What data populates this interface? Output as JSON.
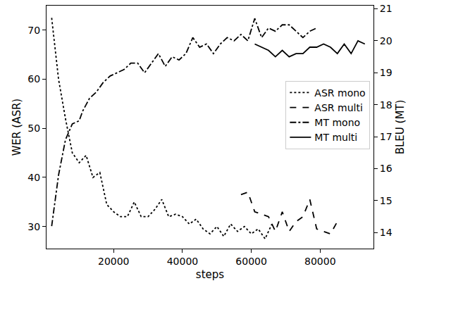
{
  "chart_data": {
    "type": "line",
    "x_label": "steps",
    "y_label": "WER (ASR)",
    "y2_label": "BLEU (MT)",
    "xlim": [
      500,
      95500
    ],
    "xticks": [
      20000,
      40000,
      60000,
      80000
    ],
    "ylim": [
      25.5,
      75
    ],
    "yticks": [
      30,
      40,
      50,
      60,
      70
    ],
    "y2lim": [
      13.5,
      21.1
    ],
    "y2ticks": [
      14,
      15,
      16,
      17,
      18,
      19,
      20,
      21
    ],
    "grid": false,
    "legend": "center right",
    "series": [
      {
        "name": "ASR mono",
        "color": "#000000",
        "line_style": "dotted",
        "axis": "y",
        "x": [
          2000,
          4000,
          6000,
          8000,
          10000,
          12000,
          14000,
          16000,
          18000,
          20000,
          22000,
          24000,
          26000,
          28000,
          30000,
          32000,
          34000,
          36000,
          38000,
          40000,
          42000,
          44000,
          46000,
          48000,
          50000,
          52000,
          54000,
          56000,
          58000,
          60000,
          62000,
          64000,
          66000
        ],
        "values": [
          72.5,
          60,
          52,
          45,
          43,
          44.5,
          40,
          41,
          34.5,
          33,
          32,
          32,
          35,
          32,
          32,
          33.5,
          35.5,
          32,
          32.5,
          32,
          30.5,
          31.5,
          29.5,
          28.5,
          30,
          28,
          30.5,
          29,
          30,
          28.5,
          29.5,
          27.5,
          30.5
        ]
      },
      {
        "name": "ASR multi",
        "color": "#000000",
        "line_style": "dashed",
        "axis": "y",
        "x": [
          57000,
          59000,
          61000,
          63000,
          65000,
          67000,
          69000,
          71000,
          73000,
          75000,
          77000,
          79000,
          81000,
          83000,
          85000
        ],
        "values": [
          36.5,
          37,
          33,
          32.5,
          32,
          29,
          33,
          29,
          31,
          32,
          35.5,
          29.5,
          29,
          28.5,
          31
        ]
      },
      {
        "name": "MT mono",
        "color": "#000000",
        "line_style": "dashdot",
        "axis": "y2",
        "x": [
          2000,
          4000,
          6000,
          8000,
          10000,
          11000,
          13000,
          15000,
          17000,
          19000,
          21000,
          23000,
          25000,
          27000,
          29000,
          31000,
          33000,
          35000,
          37000,
          39000,
          41000,
          43000,
          45000,
          47000,
          49000,
          51000,
          53000,
          55000,
          57000,
          59000,
          61000,
          63000,
          65000,
          67000,
          69000,
          71000,
          73000,
          75000,
          77000,
          79000
        ],
        "values": [
          14.2,
          15.8,
          16.9,
          17.4,
          17.5,
          17.8,
          18.2,
          18.4,
          18.7,
          18.9,
          19.0,
          19.1,
          19.3,
          19.3,
          19.0,
          19.3,
          19.6,
          19.2,
          19.5,
          19.4,
          19.6,
          20.1,
          19.8,
          19.9,
          19.6,
          19.9,
          20.1,
          20.0,
          20.2,
          20.0,
          20.7,
          20.1,
          20.4,
          20.3,
          20.5,
          20.5,
          20.3,
          20.1,
          20.3,
          20.4
        ]
      },
      {
        "name": "MT multi",
        "color": "#000000",
        "line_style": "solid",
        "axis": "y2",
        "x": [
          61000,
          63000,
          65000,
          67000,
          69000,
          71000,
          73000,
          75000,
          77000,
          79000,
          81000,
          83000,
          85000,
          87000,
          89000,
          91000,
          93000
        ],
        "values": [
          19.9,
          19.8,
          19.7,
          19.5,
          19.7,
          19.5,
          19.6,
          19.6,
          19.8,
          19.8,
          19.9,
          19.8,
          19.6,
          19.9,
          19.6,
          20.0,
          19.9
        ]
      }
    ]
  }
}
